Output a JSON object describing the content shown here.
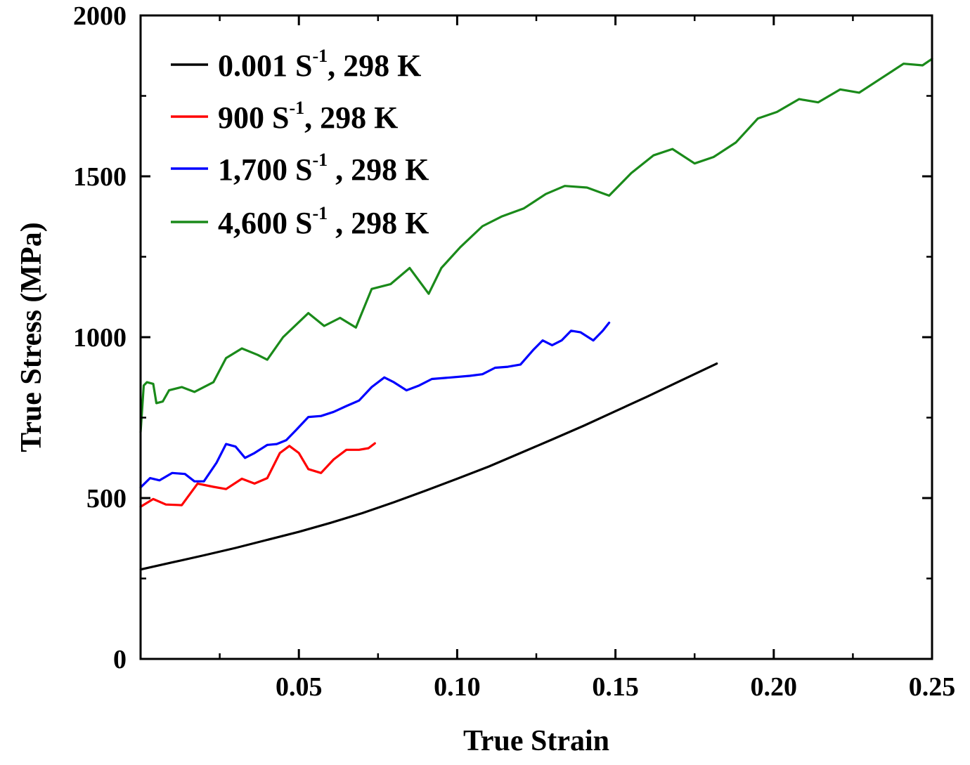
{
  "chart_data": {
    "type": "line",
    "title": "",
    "xlabel": "True Strain",
    "ylabel": "True Stress (MPa)",
    "xlim": [
      0,
      0.25
    ],
    "ylim": [
      0,
      2000
    ],
    "xticks": [
      0.05,
      0.1,
      0.15,
      0.2,
      0.25
    ],
    "xtick_labels": [
      "0.05",
      "0.10",
      "0.15",
      "0.20",
      "0.25"
    ],
    "yticks": [
      0,
      500,
      1000,
      1500,
      2000
    ],
    "ytick_labels": [
      "0",
      "500",
      "1000",
      "1500",
      "2000"
    ],
    "grid": false,
    "legend_position": "top-left",
    "series": [
      {
        "name": "0.001 S-1, 298 K",
        "legend": {
          "main": "0.001 S",
          "sup": "-1",
          "tail": ", 298 K"
        },
        "color": "#000000",
        "x": [
          0,
          0.01,
          0.02,
          0.03,
          0.04,
          0.05,
          0.06,
          0.07,
          0.08,
          0.09,
          0.1,
          0.11,
          0.12,
          0.13,
          0.14,
          0.15,
          0.16,
          0.17,
          0.182
        ],
        "y": [
          278,
          300,
          322,
          345,
          370,
          395,
          423,
          453,
          487,
          523,
          560,
          598,
          640,
          682,
          725,
          770,
          815,
          862,
          918
        ]
      },
      {
        "name": "900 S-1, 298 K",
        "legend": {
          "main": "900 S",
          "sup": "-1",
          "tail": ", 298 K"
        },
        "color": "#ff0000",
        "x": [
          0,
          0.004,
          0.008,
          0.013,
          0.018,
          0.023,
          0.027,
          0.032,
          0.036,
          0.04,
          0.044,
          0.047,
          0.05,
          0.053,
          0.057,
          0.061,
          0.065,
          0.069,
          0.072,
          0.074
        ],
        "y": [
          473,
          497,
          480,
          478,
          545,
          535,
          528,
          560,
          545,
          562,
          640,
          662,
          640,
          590,
          578,
          620,
          650,
          650,
          655,
          670
        ]
      },
      {
        "name": "1,700 S-1 , 298 K",
        "legend": {
          "main": "1,700 S",
          "sup": "-1",
          "tail": " , 298 K"
        },
        "color": "#0000ff",
        "x": [
          0,
          0.003,
          0.006,
          0.01,
          0.014,
          0.017,
          0.02,
          0.024,
          0.027,
          0.03,
          0.033,
          0.036,
          0.04,
          0.043,
          0.046,
          0.049,
          0.053,
          0.057,
          0.061,
          0.065,
          0.069,
          0.073,
          0.077,
          0.08,
          0.084,
          0.088,
          0.092,
          0.098,
          0.104,
          0.108,
          0.112,
          0.116,
          0.12,
          0.124,
          0.127,
          0.13,
          0.133,
          0.136,
          0.139,
          0.143,
          0.146,
          0.148
        ],
        "y": [
          533,
          562,
          555,
          578,
          575,
          552,
          552,
          610,
          668,
          660,
          625,
          640,
          665,
          668,
          680,
          710,
          752,
          755,
          768,
          786,
          803,
          845,
          875,
          860,
          835,
          850,
          870,
          875,
          880,
          885,
          905,
          908,
          915,
          960,
          990,
          975,
          990,
          1020,
          1015,
          990,
          1020,
          1045
        ]
      },
      {
        "name": "4,600 S-1 , 298 K",
        "legend": {
          "main": "4,600 S",
          "sup": "-1",
          "tail": " , 298 K"
        },
        "color": "#1a8a1a",
        "x": [
          0,
          0.001,
          0.002,
          0.004,
          0.005,
          0.007,
          0.009,
          0.013,
          0.017,
          0.023,
          0.027,
          0.032,
          0.037,
          0.04,
          0.045,
          0.053,
          0.058,
          0.063,
          0.068,
          0.073,
          0.079,
          0.085,
          0.091,
          0.095,
          0.101,
          0.108,
          0.114,
          0.121,
          0.128,
          0.134,
          0.141,
          0.148,
          0.155,
          0.162,
          0.168,
          0.175,
          0.181,
          0.188,
          0.195,
          0.201,
          0.208,
          0.214,
          0.221,
          0.227,
          0.234,
          0.241,
          0.247,
          0.25
        ],
        "y": [
          705,
          850,
          860,
          855,
          795,
          800,
          835,
          845,
          830,
          860,
          935,
          965,
          945,
          930,
          1000,
          1075,
          1035,
          1060,
          1030,
          1150,
          1165,
          1215,
          1135,
          1215,
          1280,
          1345,
          1375,
          1400,
          1445,
          1470,
          1465,
          1440,
          1510,
          1565,
          1585,
          1540,
          1560,
          1605,
          1680,
          1700,
          1740,
          1730,
          1770,
          1760,
          1805,
          1850,
          1845,
          1865
        ]
      }
    ]
  }
}
